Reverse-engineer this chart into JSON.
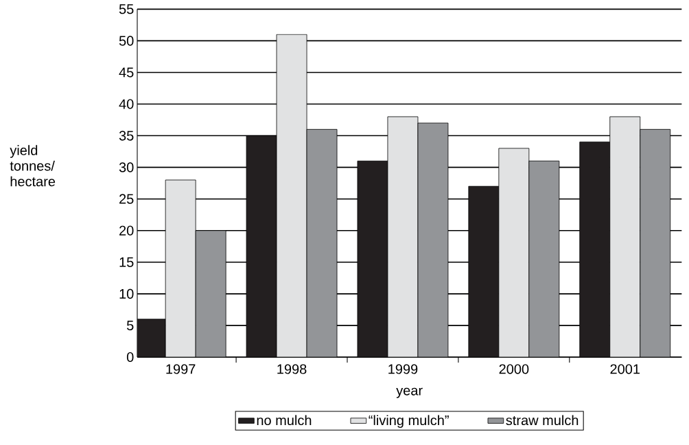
{
  "chart_data": {
    "type": "bar",
    "xlabel": "year",
    "ylabel": "yield tonnes/ hectare",
    "categories": [
      "1997",
      "1998",
      "1999",
      "2000",
      "2001"
    ],
    "series": [
      {
        "name": "no mulch",
        "color": "#231f20",
        "values": [
          6,
          35,
          31,
          27,
          34
        ]
      },
      {
        "name": "“living mulch”",
        "color": "#e1e2e3",
        "values": [
          28,
          51,
          38,
          33,
          38
        ]
      },
      {
        "name": "straw mulch",
        "color": "#939598",
        "values": [
          20,
          36,
          37,
          31,
          36
        ]
      }
    ],
    "ylim": [
      0,
      55
    ],
    "yticks": [
      0,
      5,
      10,
      15,
      20,
      25,
      30,
      35,
      40,
      45,
      50,
      55
    ],
    "grid": "y",
    "legend": "bottom"
  }
}
